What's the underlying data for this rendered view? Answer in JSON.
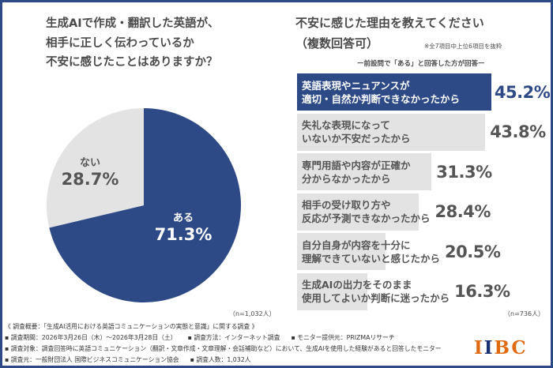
{
  "left": {
    "title_lines": [
      "生成AIで作成・翻訳した英語が、",
      "相手に正しく伝わっているか",
      "不安に感じたことはありますか？"
    ],
    "n": "（n=1,032人）"
  },
  "right": {
    "title_lines": [
      "不安に感じた理由を教えてください",
      "（複数回答可）"
    ],
    "note": "※全7項目中上位6項目を抜粋",
    "sub": "ー前設問で「ある」と回答した方が回答ー",
    "n": "（n=736人）"
  },
  "chart_data": [
    {
      "type": "pie",
      "slices": [
        {
          "label": "ある",
          "value": 71.3,
          "display": "71.3%",
          "color": "#2e4a86"
        },
        {
          "label": "ない",
          "value": 28.7,
          "display": "28.7%",
          "color": "#e3e3e3"
        }
      ]
    },
    {
      "type": "bar",
      "orientation": "horizontal",
      "highlight_color": "#2e4a86",
      "bar_color": "#e3e3e3",
      "categories": [
        [
          "英語表現やニュアンスが",
          "適切・自然か判断できなかったから"
        ],
        [
          "失礼な表現になって",
          "いないか不安だったから"
        ],
        [
          "専門用語や内容が正確か",
          "分からなかったから"
        ],
        [
          "相手の受け取り方や",
          "反応が予測できなかったから"
        ],
        [
          "自分自身が内容を十分に",
          "理解できていないと感じたから"
        ],
        [
          "生成AIの出力をそのまま",
          "使用してよいか判断に迷ったから"
        ]
      ],
      "values": [
        45.2,
        43.8,
        31.3,
        28.4,
        20.5,
        16.3
      ],
      "labels": [
        "45.2%",
        "43.8%",
        "31.3%",
        "28.4%",
        "20.5%",
        "16.3%"
      ]
    }
  ],
  "footer": {
    "lines": [
      [
        "《 調査概要：「生成AI活用における英語コミュニケーションの実態と意識」に関する調査 》"
      ],
      [
        "▪ 調査期間：2026年3月26日（木）～2026年3月28日（土）",
        "▪ 調査方法：インターネット調査",
        "▪ モニター提供元：PRIZMAリサーチ"
      ],
      [
        "▪ 調査対象：調査回答時に英語コミュニケーション（翻訳・文章作成・文章理解・会話補助など）において、生成AIを使用した経験があると回答したモニター"
      ],
      [
        "▪ 調査元：一般財団法人 国際ビジネスコミュニケーション協会",
        "▪ 調査人数：1,032人"
      ]
    ]
  },
  "logo": {
    "text": "IIBC"
  },
  "colors": {
    "frame": "#2e4a86",
    "accent": "#2e4a86",
    "gray": "#e3e3e3",
    "logo_orange": "#e06a10",
    "logo_navy": "#1b2f73"
  }
}
